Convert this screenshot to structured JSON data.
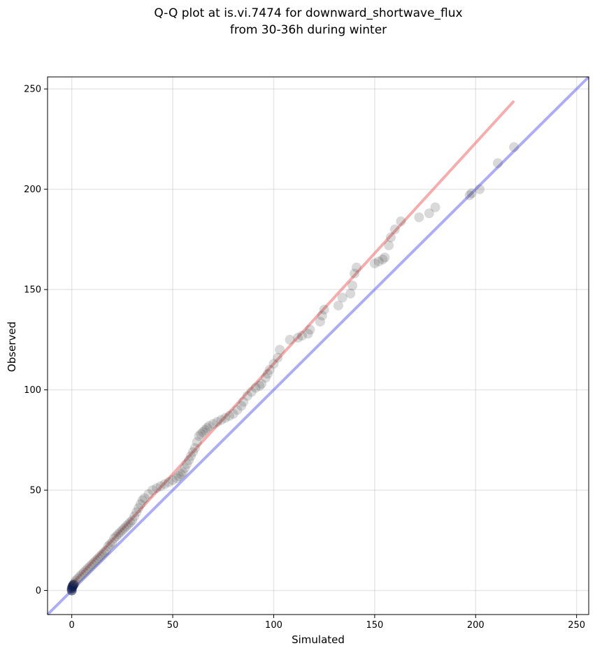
{
  "chart_data": {
    "type": "scatter",
    "title_line1": "Q-Q plot at is.vi.7474 for downward_shortwave_flux",
    "title_line2": "from 30-36h during winter",
    "xlabel": "Simulated",
    "ylabel": "Observed",
    "xlim": [
      -12,
      256
    ],
    "ylim": [
      -12,
      256
    ],
    "xticks": [
      0,
      50,
      100,
      150,
      200,
      250
    ],
    "yticks": [
      0,
      50,
      100,
      150,
      200,
      250
    ],
    "grid": true,
    "points_color": "#404040",
    "low_points_color": "#0b1a4a",
    "identity_line_color": "#7777ee",
    "fit_line_color": "#ee7777",
    "series": [
      {
        "name": "",
        "x": [
          0,
          0,
          0.3,
          0.6,
          1,
          1.5,
          2,
          3,
          4,
          5,
          6,
          7,
          8,
          9,
          10,
          11,
          12,
          13,
          14,
          15,
          16,
          17,
          18,
          19,
          20,
          21,
          22,
          23,
          24,
          25,
          26,
          27,
          28,
          29,
          30,
          31,
          32,
          33,
          34,
          35,
          36,
          38,
          40,
          42,
          44,
          46,
          48,
          50,
          52,
          53,
          54,
          55,
          56,
          57,
          58,
          59,
          60,
          61,
          62,
          63,
          64,
          65,
          66,
          67,
          68,
          70,
          72,
          74,
          76,
          78,
          80,
          82,
          84,
          85,
          87,
          89,
          91,
          93,
          94,
          96,
          97,
          98,
          100,
          102,
          103,
          108,
          112,
          114,
          117,
          118,
          123,
          124,
          125,
          132,
          134,
          138,
          139,
          140,
          141,
          150,
          152,
          154,
          155,
          157,
          158,
          160,
          163,
          172,
          177,
          180,
          197,
          198,
          202,
          211,
          219
        ],
        "y": [
          0,
          1,
          1.8,
          2.5,
          3,
          4,
          5,
          6,
          7,
          8,
          9,
          10,
          11,
          12,
          13,
          14,
          15,
          16,
          17,
          18,
          19,
          20,
          22,
          23,
          24,
          26,
          27,
          28,
          29,
          30,
          31,
          32,
          33,
          34,
          35,
          37,
          39,
          41,
          43,
          45,
          46,
          48,
          50,
          51,
          52,
          53,
          54,
          55,
          56,
          57,
          58,
          59,
          61,
          63,
          65,
          67,
          69,
          71,
          74,
          77,
          78,
          79,
          80,
          81,
          82,
          83,
          84,
          85,
          86,
          87,
          88,
          90,
          92,
          94,
          97,
          99,
          101,
          102,
          103,
          106,
          108,
          110,
          113,
          116,
          120,
          125,
          126,
          127,
          128,
          130,
          134,
          137,
          140,
          142,
          146,
          148,
          152,
          158,
          161,
          163,
          164,
          165,
          166,
          172,
          176,
          180,
          184,
          186,
          188,
          191,
          197,
          198,
          200,
          213,
          221
        ]
      }
    ],
    "identity_line": {
      "from": [
        -12,
        -12
      ],
      "to": [
        256,
        256
      ]
    },
    "fit_line": {
      "from": [
        0,
        3
      ],
      "to": [
        219,
        244
      ]
    }
  }
}
